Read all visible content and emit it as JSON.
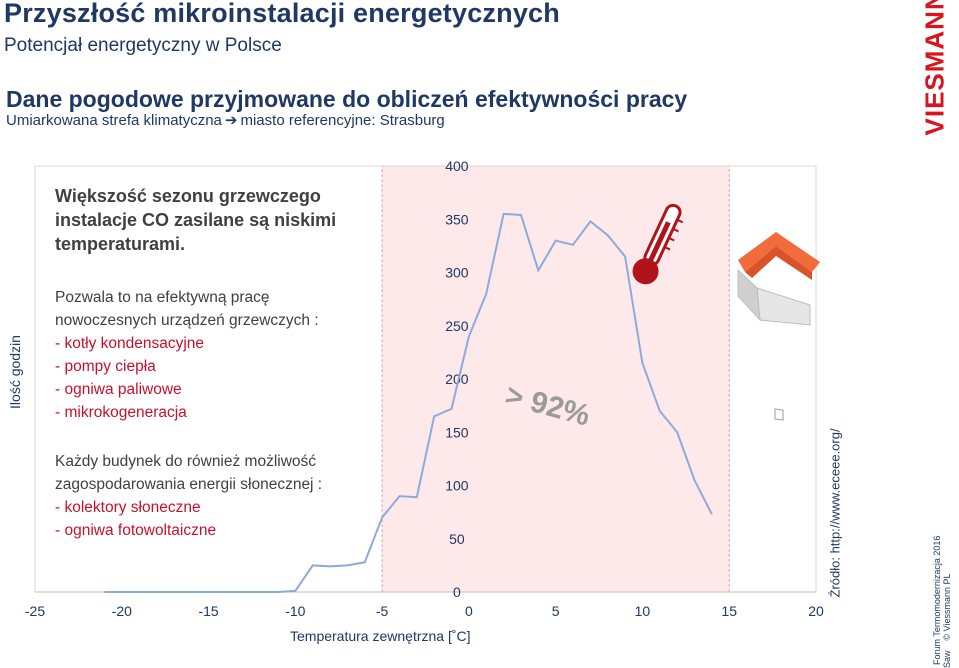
{
  "header": {
    "title": "Przyszłość mikroinstalacji energetycznych",
    "subtitle": "Potencjał energetyczny w Polsce"
  },
  "section": {
    "heading": "Dane pogodowe przyjmowane do obliczeń efektywności pracy",
    "subheading_left": "Umiarkowana strefa klimatyczna",
    "subheading_arrow": "➔",
    "subheading_right": "miasto referencyjne: Strasburg"
  },
  "textbox": {
    "bold": "Większość sezonu grzewczego instalacje CO zasilane są niskimi temperaturami.",
    "para1": "Pozwala to na efektywną pracę nowoczesnych urządzeń grzewczych :",
    "list1": [
      "kotły kondensacyjne",
      "pompy ciepła",
      "ogniwa paliwowe",
      "mikrokogeneracja"
    ],
    "para2": "Każdy budynek do również możliwość zagospodarowania energii słonecznej :",
    "list2": [
      "kolektory słoneczne",
      "ogniwa fotowoltaiczne"
    ]
  },
  "annotation": "> 92%",
  "source": "Źródło: http://www.eceee.org/",
  "footer": {
    "left": "Forum Termomodernizacja  2016",
    "org": "Saw",
    "copyright": "© Viessmann PL"
  },
  "logo_text": "VIESMANN",
  "colors": {
    "navy": "#1f3864",
    "series": "#8eaadb",
    "highlight": "#fde9ea",
    "highlight_border": "#e8a0a6",
    "accent_red": "#c8102e"
  },
  "chart_data": {
    "type": "line",
    "title": "",
    "xlabel": "Temperatura zewnętrzna [˚C]",
    "ylabel": "Ilość godzin",
    "xlim": [
      -25,
      20
    ],
    "ylim": [
      0,
      400
    ],
    "x_ticks": [
      -25,
      -20,
      -15,
      -10,
      -5,
      0,
      5,
      10,
      15,
      20
    ],
    "y_ticks": [
      0,
      50,
      100,
      150,
      200,
      250,
      300,
      350,
      400
    ],
    "highlight_range": [
      -5,
      15
    ],
    "series": [
      {
        "x": [
          -21,
          -20,
          -19,
          -18,
          -17,
          -16,
          -15,
          -14,
          -13,
          -12,
          -11,
          -10,
          -9,
          -8,
          -7,
          -6,
          -5,
          -4,
          -3,
          -2,
          -1,
          0,
          1,
          2,
          3,
          4,
          5,
          6,
          7,
          8,
          9,
          10,
          11,
          12,
          13,
          14,
          15
        ],
        "y": [
          0,
          0,
          0,
          0,
          0,
          0,
          0,
          0,
          0,
          0,
          0,
          1,
          25,
          24,
          25,
          28,
          70,
          90,
          89,
          165,
          172,
          240,
          280,
          355,
          354,
          302,
          330,
          326,
          348,
          335,
          315,
          215,
          170,
          150,
          105,
          73,
          null
        ]
      }
    ]
  }
}
